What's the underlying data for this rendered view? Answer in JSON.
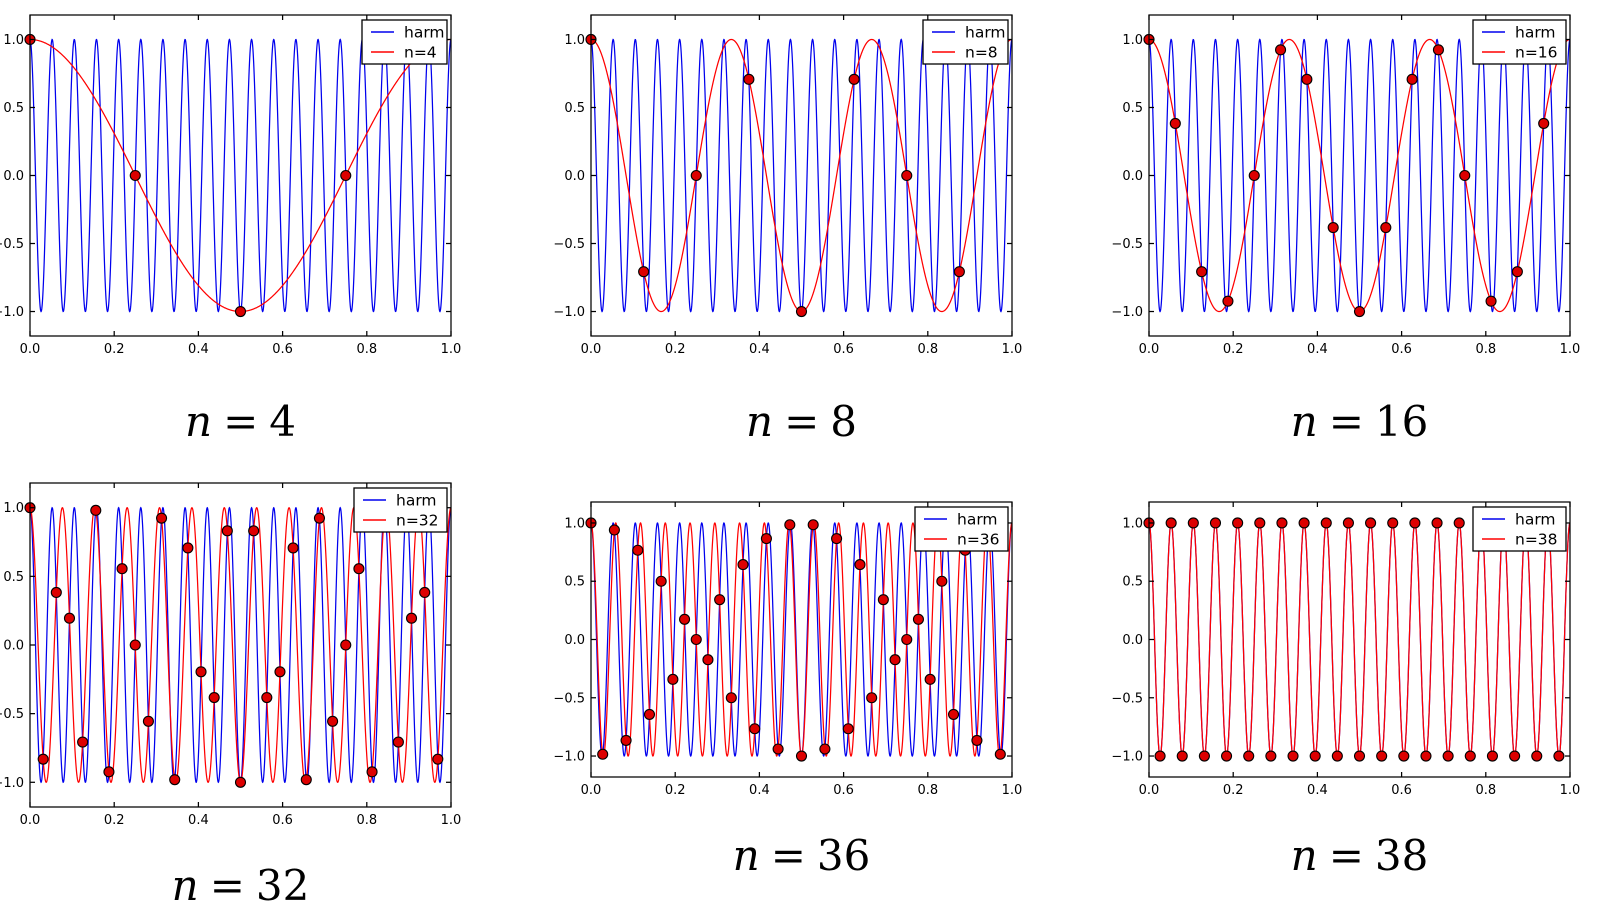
{
  "figure": {
    "background": "#ffffff",
    "harmonic": {
      "label": "harm",
      "frequency": 19,
      "color": "#0000ee"
    },
    "alias_color": "#ff0000",
    "marker": {
      "fill": "#dd0000",
      "edge": "#000000",
      "shape": "circle"
    },
    "axes_shared": {
      "x_ticklabels": [
        "0.0",
        "0.2",
        "0.4",
        "0.6",
        "0.8",
        "1.0"
      ],
      "y_ticklabels": [
        "1.0",
        "0.5",
        "0.0",
        "−0.5",
        "−1.0"
      ]
    }
  },
  "chart_data": [
    {
      "type": "line",
      "caption": "n = 4",
      "caption_parts": {
        "lhs": "n",
        "eq": "=",
        "val": "4"
      },
      "xlim": [
        0,
        1
      ],
      "ylim": [
        -1.18,
        1.18
      ],
      "x_ticks": [
        0,
        0.2,
        0.4,
        0.6,
        0.8,
        1.0
      ],
      "x_ticklabels": [
        "0.0",
        "0.2",
        "0.4",
        "0.6",
        "0.8",
        "1.0"
      ],
      "y_ticks": [
        1,
        0.5,
        0,
        -0.5,
        -1
      ],
      "y_ticklabels": [
        "1.0",
        "0.5",
        "0.0",
        "−0.5",
        "−1.0"
      ],
      "legend": {
        "position": "upper right",
        "entries": [
          "harm",
          "n=4"
        ]
      },
      "series": [
        {
          "name": "harm",
          "type": "cosine",
          "frequency": 19,
          "amplitude": 1,
          "color": "#0000ee"
        },
        {
          "name": "n=4",
          "type": "cosine",
          "frequency": 1,
          "amplitude": 1,
          "color": "#ff0000"
        }
      ],
      "samples": {
        "n": 4,
        "x_rule": "k/n, k=0..n-1",
        "marker": "circle",
        "fill": "#dd0000",
        "edge": "#000000",
        "x": [
          0,
          0.25,
          0.5,
          0.75
        ],
        "y": [
          1,
          0,
          -1,
          0
        ]
      }
    },
    {
      "type": "line",
      "caption": "n = 8",
      "caption_parts": {
        "lhs": "n",
        "eq": "=",
        "val": "8"
      },
      "xlim": [
        0,
        1
      ],
      "ylim": [
        -1.18,
        1.18
      ],
      "x_ticks": [
        0,
        0.2,
        0.4,
        0.6,
        0.8,
        1.0
      ],
      "x_ticklabels": [
        "0.0",
        "0.2",
        "0.4",
        "0.6",
        "0.8",
        "1.0"
      ],
      "y_ticks": [
        1,
        0.5,
        0,
        -0.5,
        -1
      ],
      "y_ticklabels": [
        "1.0",
        "0.5",
        "0.0",
        "−0.5",
        "−1.0"
      ],
      "legend": {
        "position": "upper right",
        "entries": [
          "harm",
          "n=8"
        ]
      },
      "series": [
        {
          "name": "harm",
          "type": "cosine",
          "frequency": 19,
          "amplitude": 1,
          "color": "#0000ee"
        },
        {
          "name": "n=8",
          "type": "cosine",
          "frequency": 3,
          "amplitude": 1,
          "color": "#ff0000"
        }
      ],
      "samples": {
        "n": 8,
        "x_rule": "k/n, k=0..n-1",
        "marker": "circle",
        "fill": "#dd0000",
        "edge": "#000000",
        "x": [
          0,
          0.125,
          0.25,
          0.375,
          0.5,
          0.625,
          0.75,
          0.875
        ],
        "y": [
          1,
          -0.7071,
          0,
          0.7071,
          -1,
          0.7071,
          0,
          -0.7071
        ]
      }
    },
    {
      "type": "line",
      "caption": "n = 16",
      "caption_parts": {
        "lhs": "n",
        "eq": "=",
        "val": "16"
      },
      "xlim": [
        0,
        1
      ],
      "ylim": [
        -1.18,
        1.18
      ],
      "x_ticks": [
        0,
        0.2,
        0.4,
        0.6,
        0.8,
        1.0
      ],
      "x_ticklabels": [
        "0.0",
        "0.2",
        "0.4",
        "0.6",
        "0.8",
        "1.0"
      ],
      "y_ticks": [
        1,
        0.5,
        0,
        -0.5,
        -1
      ],
      "y_ticklabels": [
        "1.0",
        "0.5",
        "0.0",
        "−0.5",
        "−1.0"
      ],
      "legend": {
        "position": "upper right",
        "entries": [
          "harm",
          "n=16"
        ]
      },
      "series": [
        {
          "name": "harm",
          "type": "cosine",
          "frequency": 19,
          "amplitude": 1,
          "color": "#0000ee"
        },
        {
          "name": "n=16",
          "type": "cosine",
          "frequency": 3,
          "amplitude": 1,
          "color": "#ff0000"
        }
      ],
      "samples": {
        "n": 16,
        "x_rule": "k/n, k=0..n-1",
        "marker": "circle",
        "fill": "#dd0000",
        "edge": "#000000",
        "x": [
          0,
          0.0625,
          0.125,
          0.1875,
          0.25,
          0.3125,
          0.375,
          0.4375,
          0.5,
          0.5625,
          0.625,
          0.6875,
          0.75,
          0.8125,
          0.875,
          0.9375
        ],
        "y": [
          1,
          0.3827,
          -0.7071,
          -0.9239,
          0,
          0.9239,
          0.7071,
          -0.3827,
          -1,
          -0.3827,
          0.7071,
          0.9239,
          0,
          -0.9239,
          -0.7071,
          0.3827
        ]
      }
    },
    {
      "type": "line",
      "caption": "n = 32",
      "caption_parts": {
        "lhs": "n",
        "eq": "=",
        "val": "32"
      },
      "xlim": [
        0,
        1
      ],
      "ylim": [
        -1.18,
        1.18
      ],
      "x_ticks": [
        0,
        0.2,
        0.4,
        0.6,
        0.8,
        1.0
      ],
      "x_ticklabels": [
        "0.0",
        "0.2",
        "0.4",
        "0.6",
        "0.8",
        "1.0"
      ],
      "y_ticks": [
        1,
        0.5,
        0,
        -0.5,
        -1
      ],
      "y_ticklabels": [
        "1.0",
        "0.5",
        "0.0",
        "−0.5",
        "−1.0"
      ],
      "legend": {
        "position": "upper right",
        "entries": [
          "harm",
          "n=32"
        ]
      },
      "series": [
        {
          "name": "harm",
          "type": "cosine",
          "frequency": 19,
          "amplitude": 1,
          "color": "#0000ee"
        },
        {
          "name": "n=32",
          "type": "cosine",
          "frequency": 13,
          "amplitude": 1,
          "color": "#ff0000"
        }
      ],
      "samples": {
        "n": 32,
        "x_rule": "k/n, k=0..n-1",
        "marker": "circle",
        "fill": "#dd0000",
        "edge": "#000000",
        "y": [
          1,
          -0.8315,
          0.3827,
          0.1951,
          -0.7071,
          0.9808,
          -0.9239,
          0.5556,
          0,
          -0.5556,
          0.9239,
          -0.9808,
          0.7071,
          -0.1951,
          -0.3827,
          0.8315,
          -1,
          0.8315,
          -0.3827,
          -0.1951,
          0.7071,
          -0.9808,
          0.9239,
          -0.5556,
          0,
          0.5556,
          -0.9239,
          0.9808,
          -0.7071,
          0.1951,
          0.3827,
          -0.8315
        ]
      }
    },
    {
      "type": "line",
      "caption": "n = 36",
      "caption_parts": {
        "lhs": "n",
        "eq": "=",
        "val": "36"
      },
      "xlim": [
        0,
        1
      ],
      "ylim": [
        -1.18,
        1.18
      ],
      "x_ticks": [
        0,
        0.2,
        0.4,
        0.6,
        0.8,
        1.0
      ],
      "x_ticklabels": [
        "0.0",
        "0.2",
        "0.4",
        "0.6",
        "0.8",
        "1.0"
      ],
      "y_ticks": [
        1,
        0.5,
        0,
        -0.5,
        -1
      ],
      "y_ticklabels": [
        "1.0",
        "0.5",
        "0.0",
        "−0.5",
        "−1.0"
      ],
      "legend": {
        "position": "upper right",
        "entries": [
          "harm",
          "n=36"
        ]
      },
      "series": [
        {
          "name": "harm",
          "type": "cosine",
          "frequency": 19,
          "amplitude": 1,
          "color": "#0000ee"
        },
        {
          "name": "n=36",
          "type": "cosine",
          "frequency": 17,
          "amplitude": 1,
          "color": "#ff0000"
        }
      ],
      "samples": {
        "n": 36,
        "x_rule": "k/n, k=0..n-1",
        "marker": "circle",
        "fill": "#dd0000",
        "edge": "#000000",
        "y": [
          1,
          -0.9848,
          0.9397,
          -0.866,
          0.766,
          -0.6428,
          0.5,
          -0.342,
          0.1736,
          0,
          -0.1736,
          0.342,
          -0.5,
          0.6428,
          -0.766,
          0.866,
          -0.9397,
          0.9848,
          -1,
          0.9848,
          -0.9397,
          0.866,
          -0.766,
          0.6428,
          -0.5,
          0.342,
          -0.1736,
          0,
          0.1736,
          -0.342,
          0.5,
          -0.6428,
          0.766,
          -0.866,
          0.9397,
          -0.9848
        ]
      }
    },
    {
      "type": "line",
      "caption": "n = 38",
      "caption_parts": {
        "lhs": "n",
        "eq": "=",
        "val": "38"
      },
      "xlim": [
        0,
        1
      ],
      "ylim": [
        -1.18,
        1.18
      ],
      "x_ticks": [
        0,
        0.2,
        0.4,
        0.6,
        0.8,
        1.0
      ],
      "x_ticklabels": [
        "0.0",
        "0.2",
        "0.4",
        "0.6",
        "0.8",
        "1.0"
      ],
      "y_ticks": [
        1,
        0.5,
        0,
        -0.5,
        -1
      ],
      "y_ticklabels": [
        "1.0",
        "0.5",
        "0.0",
        "−0.5",
        "−1.0"
      ],
      "legend": {
        "position": "upper right",
        "entries": [
          "harm",
          "n=38"
        ]
      },
      "series": [
        {
          "name": "harm",
          "type": "cosine",
          "frequency": 19,
          "amplitude": 1,
          "color": "#0000ee"
        },
        {
          "name": "n=38",
          "type": "cosine",
          "frequency": 19,
          "amplitude": 1,
          "color": "#ff0000"
        }
      ],
      "samples": {
        "n": 38,
        "x_rule": "k/n, k=0..n-1",
        "marker": "circle",
        "fill": "#dd0000",
        "edge": "#000000",
        "y": [
          1,
          -1,
          1,
          -1,
          1,
          -1,
          1,
          -1,
          1,
          -1,
          1,
          -1,
          1,
          -1,
          1,
          -1,
          1,
          -1,
          1,
          -1,
          1,
          -1,
          1,
          -1,
          1,
          -1,
          1,
          -1,
          1,
          -1,
          1,
          -1,
          1,
          -1,
          1,
          -1,
          1,
          -1
        ]
      }
    }
  ]
}
